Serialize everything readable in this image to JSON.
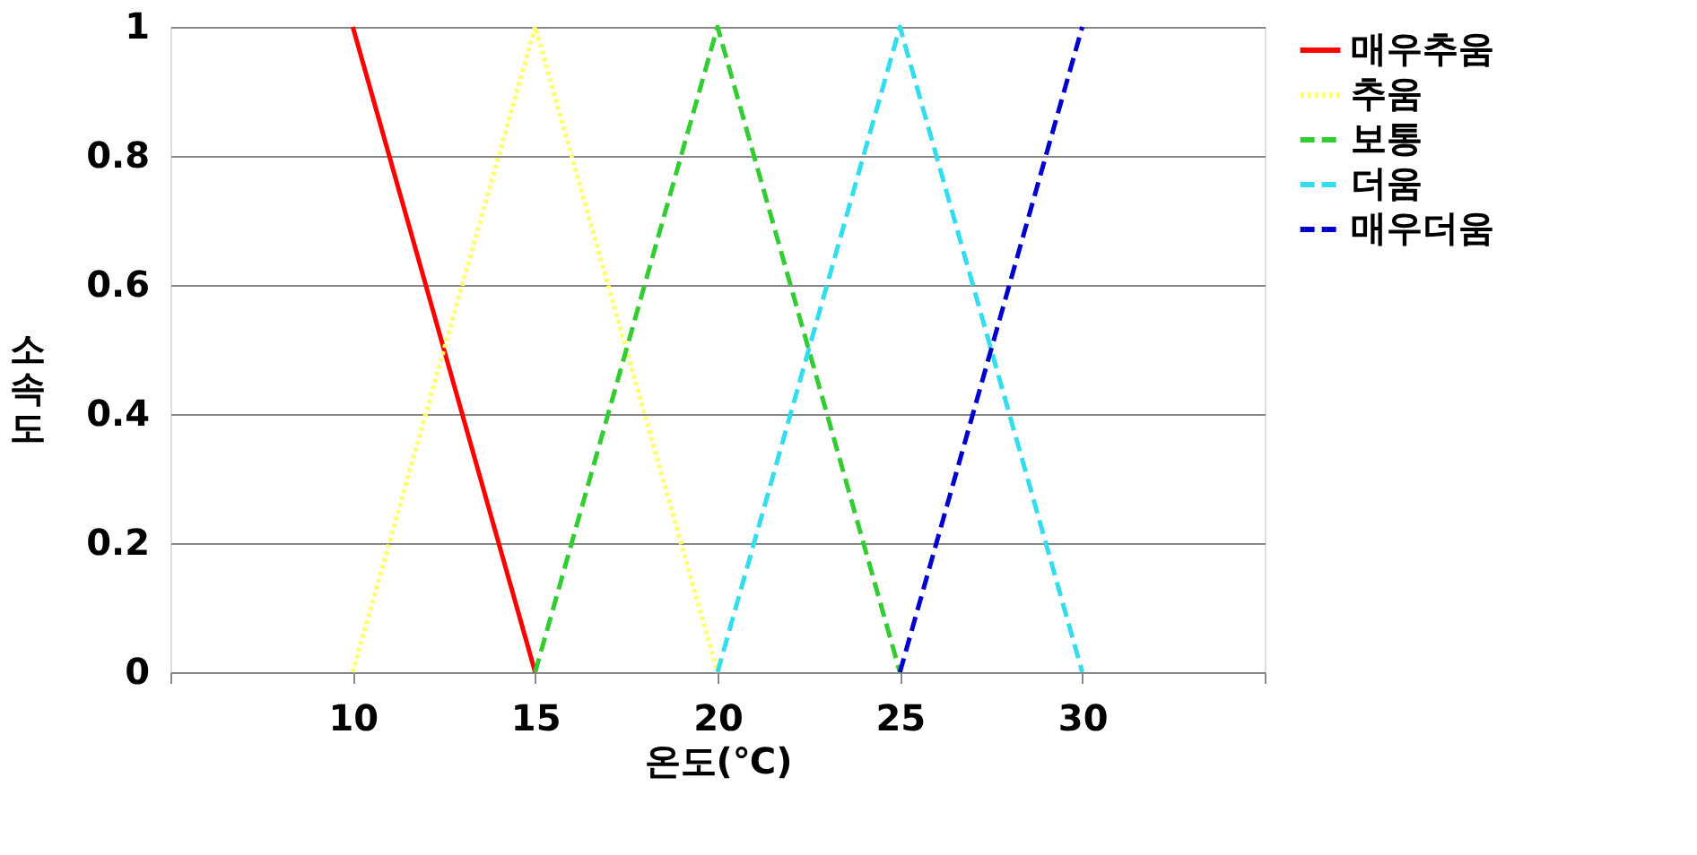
{
  "chart_data": {
    "type": "line",
    "xlabel": "온도(℃)",
    "ylabel": "소속도",
    "xlim": [
      5,
      35
    ],
    "xticks": [
      {
        "value": 5,
        "label": null
      },
      10,
      15,
      20,
      25,
      30,
      {
        "value": 35,
        "label": null
      }
    ],
    "ylim": [
      0,
      1
    ],
    "yticks": [
      0,
      0.2,
      0.4,
      0.6,
      0.8,
      1
    ],
    "grid": "y",
    "legend": "right",
    "series": [
      {
        "name": "매우추움",
        "color": "#ff0000",
        "line_style": "solid",
        "x": [
          10,
          15
        ],
        "values": [
          1,
          0
        ]
      },
      {
        "name": "추움",
        "color": "#ffff66",
        "line_style": "dotted",
        "x": [
          10,
          15,
          20
        ],
        "values": [
          0,
          1,
          0
        ]
      },
      {
        "name": "보통",
        "color": "#33cc33",
        "line_style": "dashed",
        "x": [
          15,
          20,
          25
        ],
        "values": [
          0,
          1,
          0
        ]
      },
      {
        "name": "더움",
        "color": "#33ddee",
        "line_style": "dashed",
        "x": [
          20,
          25,
          30
        ],
        "values": [
          0,
          1,
          0
        ]
      },
      {
        "name": "매우더움",
        "color": "#0000cc",
        "line_style": "dashed",
        "x": [
          25,
          30
        ],
        "values": [
          0,
          1
        ]
      }
    ]
  }
}
